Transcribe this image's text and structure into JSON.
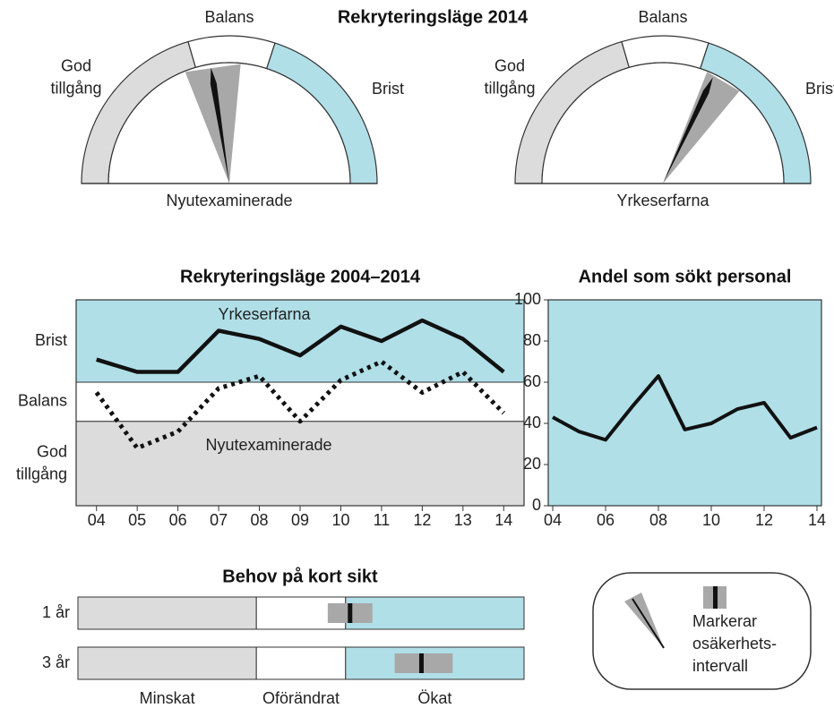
{
  "title": "Rekryteringsläge 2014",
  "zones": [
    {
      "label": "God tillgång",
      "from": 0,
      "to": 41,
      "color": "#dcdcdd"
    },
    {
      "label": "Balans",
      "from": 41,
      "to": 60,
      "color": "#ffffff"
    },
    {
      "label": "Brist",
      "from": 60,
      "to": 100,
      "color": "#b0dfe8"
    }
  ],
  "chart_data": [
    {
      "type": "gauge",
      "label": "Nyutexaminerade",
      "range": [
        0,
        100
      ],
      "value": 45,
      "interval": [
        38,
        53
      ],
      "color": "#111111",
      "interval_color": "#a8a8a8"
    },
    {
      "type": "gauge",
      "label": "Yrkeserfarna",
      "range": [
        0,
        100
      ],
      "value": 64,
      "interval": [
        62,
        72
      ],
      "color": "#111111",
      "interval_color": "#a8a8a8"
    },
    {
      "type": "line",
      "title": "Rekryteringsläge 2004–2014",
      "categories": [
        "04",
        "05",
        "06",
        "07",
        "08",
        "09",
        "10",
        "11",
        "12",
        "13",
        "14"
      ],
      "ylim": [
        0,
        100
      ],
      "series": [
        {
          "name": "Yrkeserfarna",
          "color": "#111111",
          "style": "solid",
          "values": [
            71,
            65,
            65,
            85,
            81,
            73,
            87,
            80,
            90,
            81,
            65
          ]
        },
        {
          "name": "Nyutexaminerade",
          "color": "#111111",
          "style": "dotted",
          "values": [
            55,
            28,
            36,
            57,
            63,
            41,
            61,
            70,
            55,
            65,
            45
          ]
        }
      ]
    },
    {
      "type": "line",
      "title": "Andel som sökt personal",
      "categories": [
        "04",
        null,
        "06",
        null,
        "08",
        null,
        "10",
        null,
        "12",
        null,
        "14"
      ],
      "ylim": [
        0,
        100
      ],
      "yticks": [
        0,
        20,
        40,
        60,
        80,
        100
      ],
      "background": "#b0dfe8",
      "series": [
        {
          "color": "#111111",
          "style": "solid",
          "values": [
            43,
            36,
            32,
            48,
            63,
            37,
            40,
            47,
            50,
            33,
            38
          ]
        }
      ]
    },
    {
      "type": "range",
      "title": "Behov på kort sikt",
      "xlim": [
        0,
        100
      ],
      "zones": [
        {
          "label": "Minskat",
          "from": 0,
          "to": 40,
          "color": "#dcdcdd"
        },
        {
          "label": "Oförändrat",
          "from": 40,
          "to": 60,
          "color": "#ffffff"
        },
        {
          "label": "Ökat",
          "from": 60,
          "to": 100,
          "color": "#b0dfe8"
        }
      ],
      "rows": [
        {
          "label": "1 år",
          "value": 61,
          "interval": [
            56,
            66
          ]
        },
        {
          "label": "3 år",
          "value": 77,
          "interval": [
            71,
            84
          ]
        }
      ],
      "color": "#111111",
      "interval_color": "#a8a8a8"
    }
  ],
  "legend": {
    "text": [
      "Markerar",
      "osäkerhets-",
      "intervall"
    ]
  }
}
